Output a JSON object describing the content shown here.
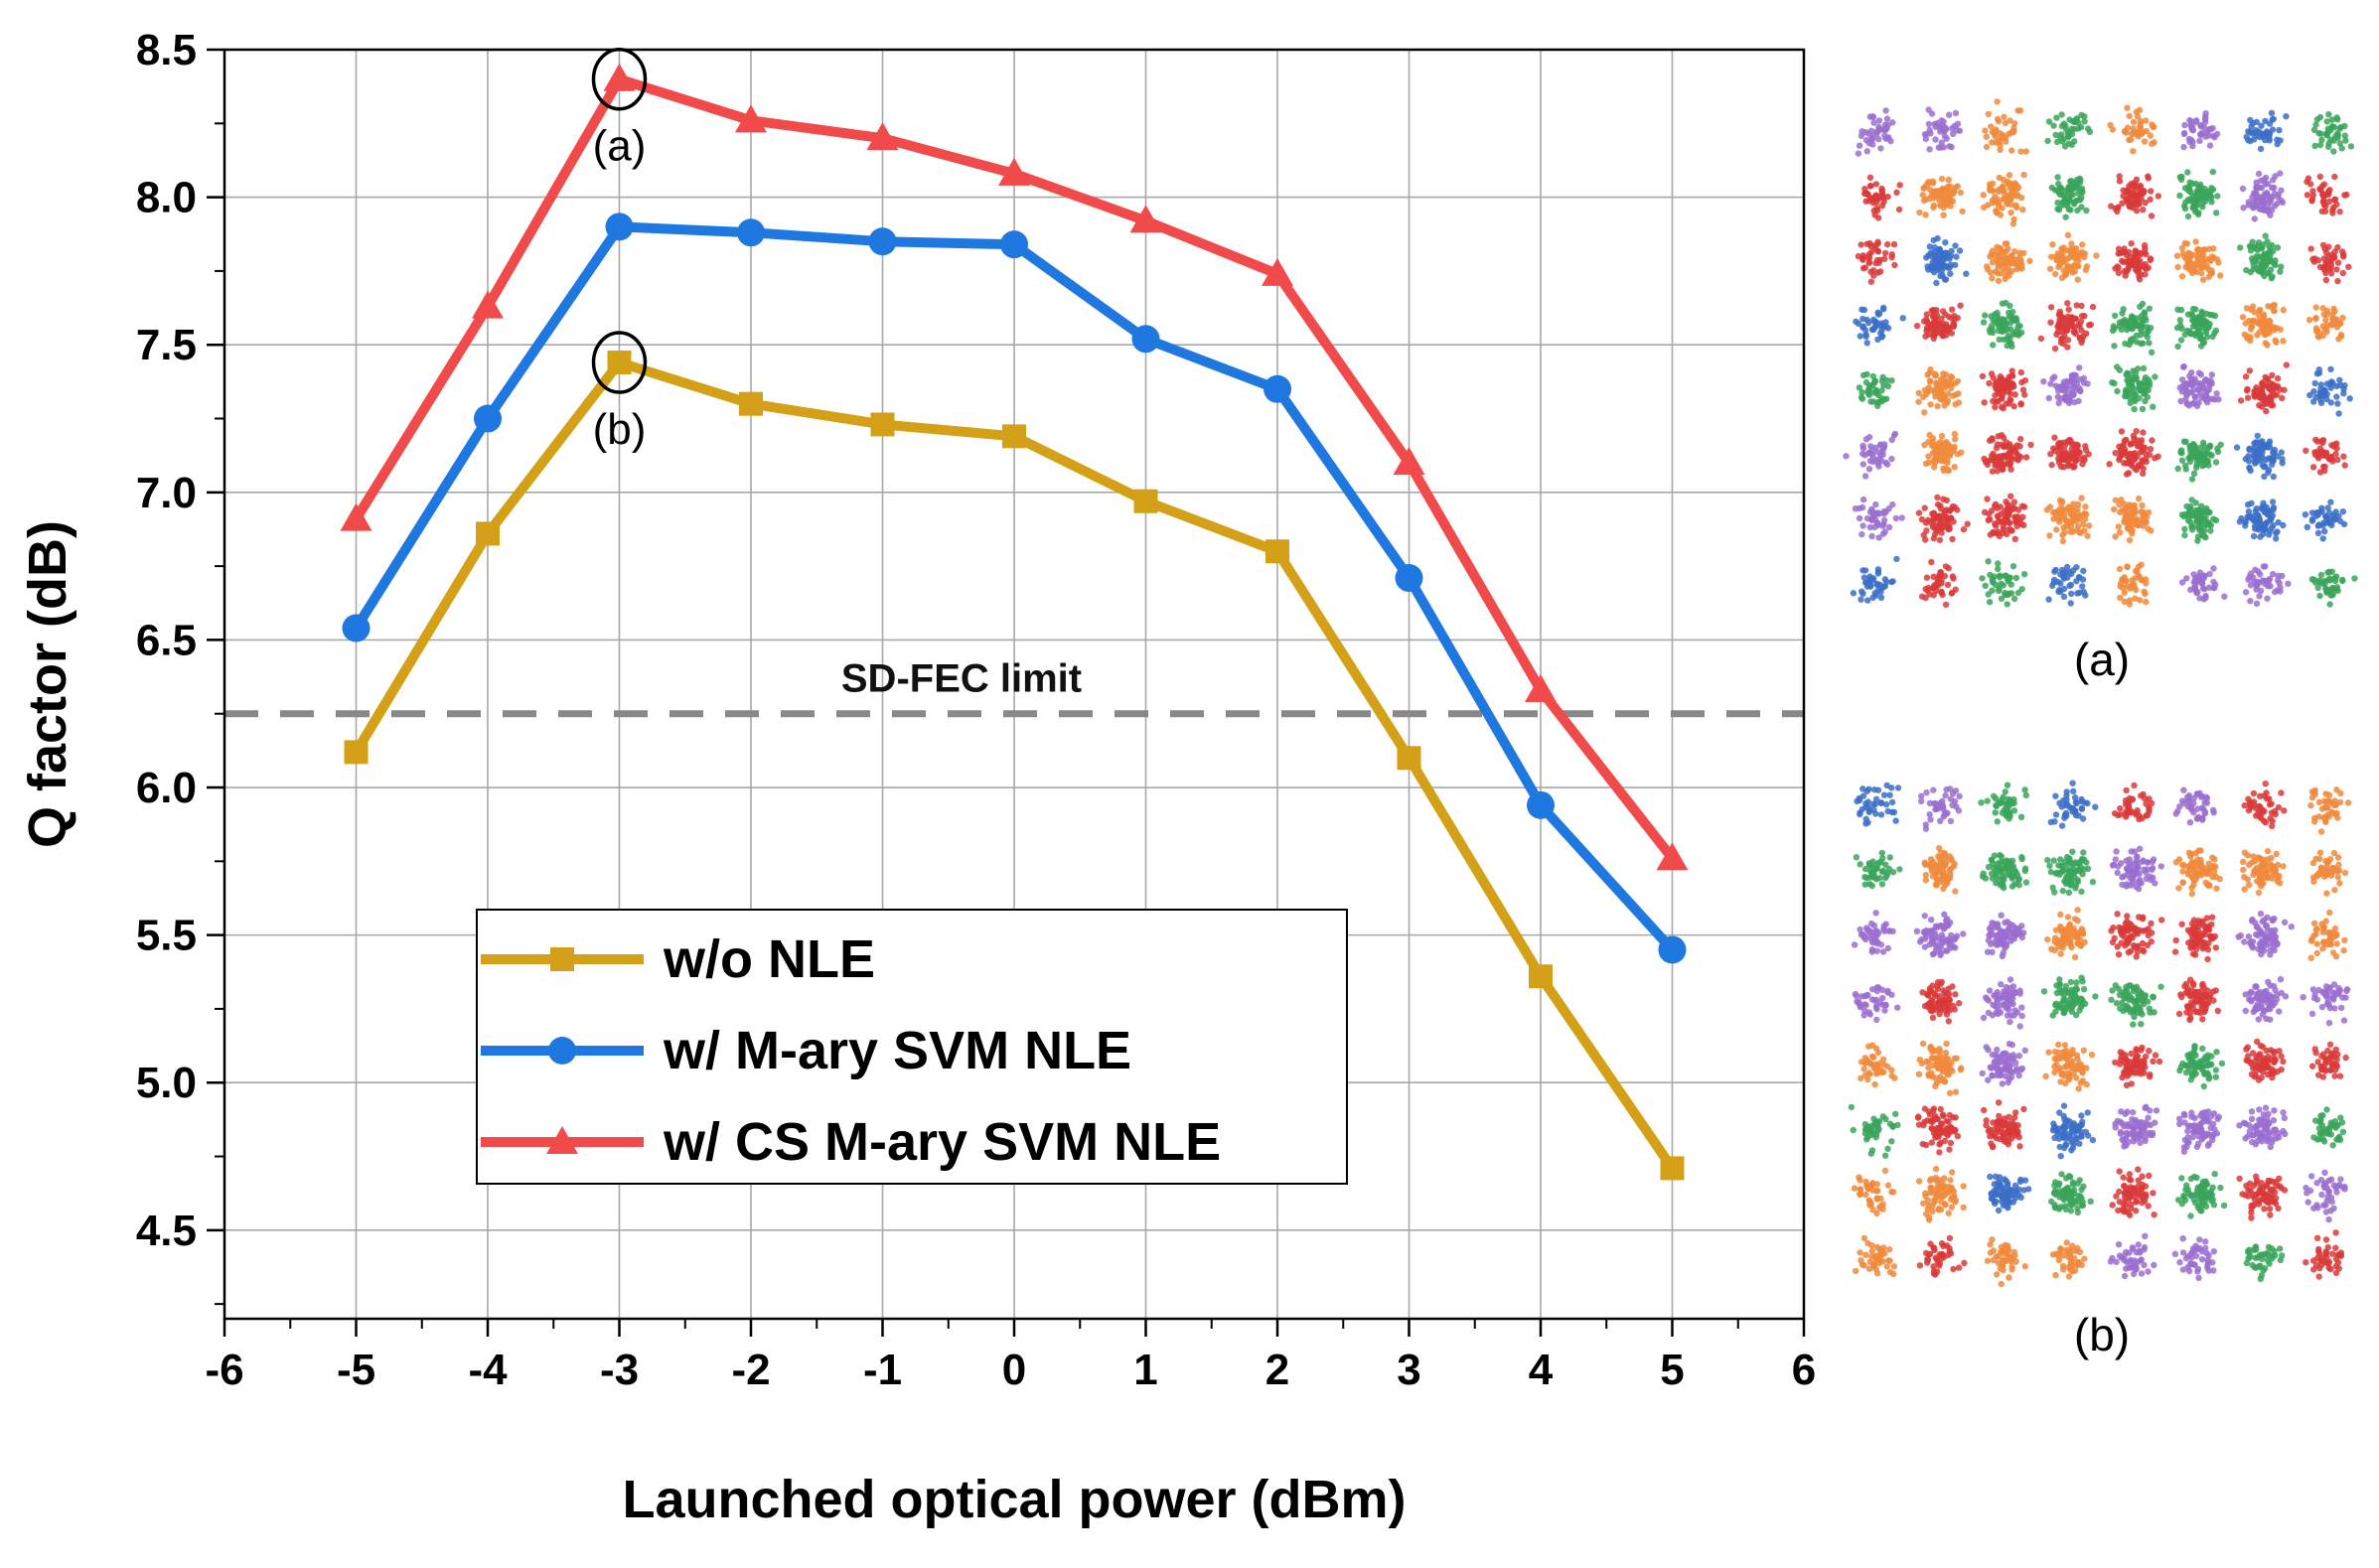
{
  "chart_data": {
    "type": "line",
    "title": "",
    "xlabel": "Launched optical power (dBm)",
    "ylabel": "Q factor (dB)",
    "xlim": [
      -6,
      6
    ],
    "ylim": [
      4.2,
      8.5
    ],
    "x_ticks": [
      -6,
      -5,
      -4,
      -3,
      -2,
      -1,
      0,
      1,
      2,
      3,
      4,
      5,
      6
    ],
    "y_ticks": [
      4.5,
      5.0,
      5.5,
      6.0,
      6.5,
      7.0,
      7.5,
      8.0,
      8.5
    ],
    "x_tick_labels": [
      "-6",
      "-5",
      "-4",
      "-3",
      "-2",
      "-1",
      "0",
      "1",
      "2",
      "3",
      "4",
      "5",
      "6"
    ],
    "y_tick_labels": [
      "4.5",
      "5.0",
      "5.5",
      "6.0",
      "6.5",
      "7.0",
      "7.5",
      "8.0",
      "8.5"
    ],
    "grid": true,
    "x": [
      -5,
      -4,
      -3,
      -2,
      -1,
      0,
      1,
      2,
      3,
      4,
      5
    ],
    "series": [
      {
        "name": "w/o NLE",
        "marker": "square",
        "color": "#d4a017",
        "values": [
          6.12,
          6.86,
          7.44,
          7.3,
          7.23,
          7.19,
          6.97,
          6.8,
          6.1,
          5.36,
          4.71
        ]
      },
      {
        "name": "w/ M-ary SVM NLE",
        "marker": "circle",
        "color": "#1f77e0",
        "values": [
          6.54,
          7.25,
          7.9,
          7.88,
          7.85,
          7.84,
          7.52,
          7.35,
          6.71,
          5.94,
          5.45
        ]
      },
      {
        "name": "w/ CS M-ary SVM NLE",
        "marker": "triangle",
        "color": "#f04a4a",
        "values": [
          6.91,
          7.63,
          8.4,
          8.26,
          8.2,
          8.08,
          7.92,
          7.74,
          7.1,
          6.33,
          5.76
        ]
      }
    ],
    "reference_line": {
      "label": "SD-FEC limit",
      "y": 6.25,
      "color": "#888888"
    },
    "annotations": [
      {
        "label": "(a)",
        "x": -3,
        "y": 8.4
      },
      {
        "label": "(b)",
        "x": -3,
        "y": 7.44
      }
    ],
    "legend_position": "lower-left"
  },
  "insets": [
    {
      "label": "(a)",
      "description_colors": [
        "#3b6fc7",
        "#d93a3a",
        "#3aa55a",
        "#9a6fd0",
        "#f08a3c"
      ]
    },
    {
      "label": "(b)",
      "description_colors": [
        "#3b6fc7",
        "#d93a3a",
        "#3aa55a",
        "#9a6fd0",
        "#f08a3c"
      ]
    }
  ]
}
